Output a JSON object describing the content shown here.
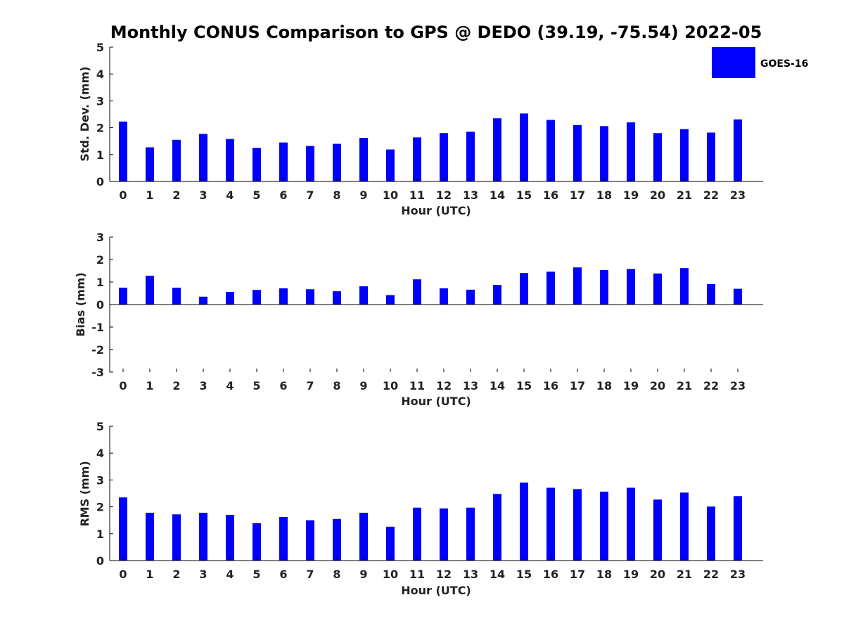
{
  "figure": {
    "title": "Monthly CONUS Comparison to GPS @ DEDO (39.19, -75.54) 2022-05",
    "legend": {
      "label": "GOES-16",
      "color": "#0000ff",
      "placement": "top-right"
    }
  },
  "chart_data": [
    {
      "type": "bar",
      "ylabel": "Std. Dev. (mm)",
      "xlabel": "Hour (UTC)",
      "ylim": [
        0,
        5
      ],
      "yticks": [
        "0",
        "1",
        "2",
        "3",
        "4",
        "5"
      ],
      "categories": [
        "0",
        "1",
        "2",
        "3",
        "4",
        "5",
        "6",
        "7",
        "8",
        "9",
        "10",
        "11",
        "12",
        "13",
        "14",
        "15",
        "16",
        "17",
        "18",
        "19",
        "20",
        "21",
        "22",
        "23"
      ],
      "series": [
        {
          "name": "GOES-16",
          "values": [
            2.23,
            1.27,
            1.55,
            1.77,
            1.58,
            1.25,
            1.45,
            1.32,
            1.4,
            1.62,
            1.19,
            1.64,
            1.8,
            1.85,
            2.35,
            2.53,
            2.29,
            2.1,
            2.06,
            2.2,
            1.8,
            1.95,
            1.82,
            2.31
          ]
        }
      ]
    },
    {
      "type": "bar",
      "ylabel": "Bias (mm)",
      "xlabel": "Hour (UTC)",
      "ylim": [
        -3,
        3
      ],
      "yticks": [
        "-3",
        "-2",
        "-1",
        "0",
        "1",
        "2",
        "3"
      ],
      "categories": [
        "0",
        "1",
        "2",
        "3",
        "4",
        "5",
        "6",
        "7",
        "8",
        "9",
        "10",
        "11",
        "12",
        "13",
        "14",
        "15",
        "16",
        "17",
        "18",
        "19",
        "20",
        "21",
        "22",
        "23"
      ],
      "series": [
        {
          "name": "GOES-16",
          "values": [
            0.75,
            1.28,
            0.75,
            0.35,
            0.56,
            0.65,
            0.72,
            0.68,
            0.59,
            0.81,
            0.42,
            1.12,
            0.72,
            0.66,
            0.87,
            1.4,
            1.46,
            1.65,
            1.53,
            1.58,
            1.38,
            1.62,
            0.91,
            0.7
          ]
        }
      ]
    },
    {
      "type": "bar",
      "ylabel": "RMS (mm)",
      "xlabel": "Hour (UTC)",
      "ylim": [
        0,
        5
      ],
      "yticks": [
        "0",
        "1",
        "2",
        "3",
        "4",
        "5"
      ],
      "categories": [
        "0",
        "1",
        "2",
        "3",
        "4",
        "5",
        "6",
        "7",
        "8",
        "9",
        "10",
        "11",
        "12",
        "13",
        "14",
        "15",
        "16",
        "17",
        "18",
        "19",
        "20",
        "21",
        "22",
        "23"
      ],
      "series": [
        {
          "name": "GOES-16",
          "values": [
            2.35,
            1.78,
            1.72,
            1.78,
            1.7,
            1.39,
            1.62,
            1.5,
            1.55,
            1.78,
            1.26,
            1.97,
            1.94,
            1.97,
            2.48,
            2.9,
            2.71,
            2.66,
            2.56,
            2.71,
            2.27,
            2.53,
            2.01,
            2.4
          ]
        }
      ]
    }
  ]
}
